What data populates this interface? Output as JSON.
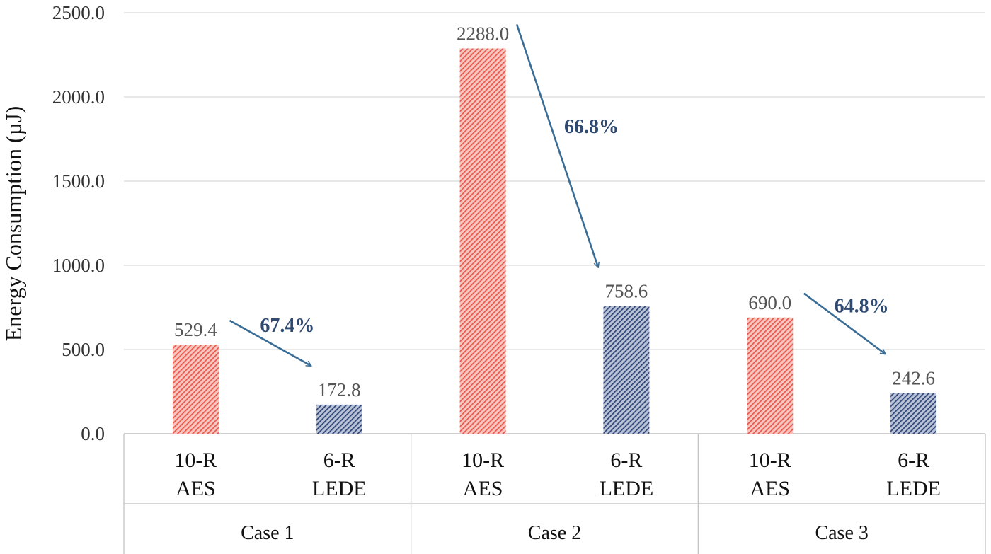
{
  "chart_data": {
    "type": "bar",
    "title": "",
    "ylabel": "Energy Consumption (µJ)",
    "xlabel": "",
    "ylim": [
      0,
      2500
    ],
    "yticks": [
      "0.0",
      "500.0",
      "1000.0",
      "1500.0",
      "2000.0",
      "2500.0"
    ],
    "grid": "horizontal",
    "groups": [
      {
        "name": "Case 1",
        "bars": [
          {
            "label_line1": "10-R",
            "label_line2": "AES",
            "value": 529.4,
            "value_label": "529.4",
            "color": "#e8584c"
          },
          {
            "label_line1": "6-R",
            "label_line2": "LEDE",
            "value": 172.8,
            "value_label": "172.8",
            "color": "#2f4577"
          }
        ],
        "annotation": "67.4%"
      },
      {
        "name": "Case 2",
        "bars": [
          {
            "label_line1": "10-R",
            "label_line2": "AES",
            "value": 2288.0,
            "value_label": "2288.0",
            "color": "#e8584c"
          },
          {
            "label_line1": "6-R",
            "label_line2": "LEDE",
            "value": 758.6,
            "value_label": "758.6",
            "color": "#2f4577"
          }
        ],
        "annotation": "66.8%"
      },
      {
        "name": "Case 3",
        "bars": [
          {
            "label_line1": "10-R",
            "label_line2": "AES",
            "value": 690.0,
            "value_label": "690.0",
            "color": "#e8584c"
          },
          {
            "label_line1": "6-R",
            "label_line2": "LEDE",
            "value": 242.6,
            "value_label": "242.6",
            "color": "#2f4577"
          }
        ],
        "annotation": "64.8%"
      }
    ],
    "arrow_color": "#3a6d96",
    "annotation_color": "#2e4a73"
  }
}
